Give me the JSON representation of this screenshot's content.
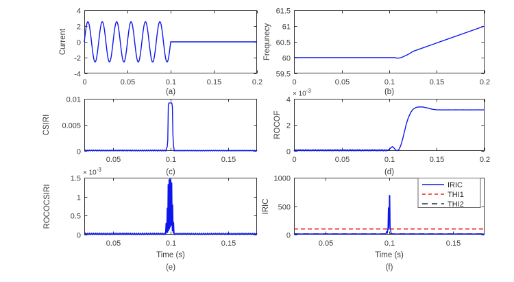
{
  "figure": {
    "background": "#ffffff",
    "axis_color": "#333333",
    "tick_label_color": "#3b3b3b",
    "series_blue": "#0d16ec",
    "threshold_red": "#ee2619",
    "threshold_black": "#2b2b2b"
  },
  "chart_data": [
    {
      "id": "a",
      "type": "line",
      "panel_label": "(a)",
      "ylabel": "Current",
      "xlabel": "",
      "xlim": [
        0,
        0.2
      ],
      "ylim": [
        -4,
        4
      ],
      "xticks": {
        "vals": [
          0,
          0.05,
          0.1,
          0.15,
          0.2
        ],
        "labels": [
          "0",
          "0.05",
          "0.1",
          "0.15",
          "0.2"
        ]
      },
      "yticks": {
        "vals": [
          -4,
          -2,
          0,
          2,
          4
        ],
        "labels": [
          "-4",
          "-2",
          "0",
          "2",
          "4"
        ]
      },
      "series": [
        {
          "name": "current",
          "color": "#0d16ec",
          "width": 1.4,
          "segments": [
            {
              "kind": "sine",
              "freq": 60,
              "amp": 2.55,
              "x0": 0,
              "x1": 0.1,
              "step": 0.0002
            },
            {
              "kind": "flat",
              "y": 0,
              "x0": 0.1,
              "x1": 0.2
            }
          ]
        }
      ]
    },
    {
      "id": "b",
      "type": "line",
      "panel_label": "(b)",
      "ylabel": "Frequnecy",
      "xlabel": "",
      "xlim": [
        0,
        0.2
      ],
      "ylim": [
        59.5,
        61.5
      ],
      "xticks": {
        "vals": [
          0,
          0.05,
          0.1,
          0.15,
          0.2
        ],
        "labels": [
          "0",
          "0.05",
          "0.1",
          "0.15",
          "0.2"
        ]
      },
      "yticks": {
        "vals": [
          59.5,
          60,
          60.5,
          61,
          61.5
        ],
        "labels": [
          "59.5",
          "60",
          "60.5",
          "61",
          "61.5"
        ]
      },
      "series": [
        {
          "name": "frequency",
          "color": "#0d16ec",
          "width": 1.4,
          "segments": [
            {
              "kind": "points",
              "pts": [
                [
                  0,
                  60
                ],
                [
                  0.105,
                  60
                ],
                [
                  0.109,
                  59.983
                ],
                [
                  0.112,
                  59.995
                ],
                [
                  0.116,
                  60.05
                ],
                [
                  0.12,
                  60.105
                ],
                [
                  0.125,
                  60.2
                ],
                [
                  0.2,
                  61.0
                ]
              ]
            }
          ]
        }
      ]
    },
    {
      "id": "c",
      "type": "line",
      "panel_label": "(c)",
      "ylabel": "CSIRI",
      "xlabel": "",
      "xlim": [
        0.025,
        0.175
      ],
      "ylim": [
        0,
        0.01
      ],
      "xticks": {
        "vals": [
          0.05,
          0.1,
          0.15
        ],
        "labels": [
          "0.05",
          "0.1",
          "0.15"
        ]
      },
      "yticks": {
        "vals": [
          0,
          0.005,
          0.01
        ],
        "labels": [
          "0",
          "0.005",
          "0.01"
        ]
      },
      "series": [
        {
          "name": "csiri",
          "color": "#0d16ec",
          "width": 1.4,
          "segments": [
            {
              "kind": "noisyflat",
              "y": 8e-05,
              "amp": 0.00012,
              "x0": 0.025,
              "x1": 0.096,
              "step": 0.0005
            },
            {
              "kind": "points",
              "pts": [
                [
                  0.096,
                  0.0002
                ],
                [
                  0.097,
                  0.0008
                ],
                [
                  0.0975,
                  0.002
                ],
                [
                  0.098,
                  0.0088
                ],
                [
                  0.0985,
                  0.0092
                ],
                [
                  0.101,
                  0.0092
                ],
                [
                  0.1015,
                  0.0085
                ],
                [
                  0.102,
                  0.003
                ],
                [
                  0.1025,
                  0.001
                ],
                [
                  0.103,
                  0.0003
                ]
              ]
            },
            {
              "kind": "noisyflat",
              "y": 6e-05,
              "amp": 8e-05,
              "x0": 0.103,
              "x1": 0.175,
              "step": 0.0005
            }
          ]
        }
      ]
    },
    {
      "id": "d",
      "type": "line",
      "panel_label": "(d)",
      "ylabel": "ROCOF",
      "xlabel": "",
      "y_multiplier": {
        "base": "× 10",
        "exp": "-3"
      },
      "xlim": [
        0,
        0.2
      ],
      "ylim": [
        0,
        0.004
      ],
      "xticks": {
        "vals": [
          0,
          0.05,
          0.1,
          0.15,
          0.2
        ],
        "labels": [
          "0",
          "0.05",
          "0.1",
          "0.15",
          "0.2"
        ]
      },
      "yticks": {
        "vals": [
          0,
          0.002,
          0.004
        ],
        "labels": [
          "0",
          "2",
          "4"
        ]
      },
      "series": [
        {
          "name": "rocof",
          "color": "#0d16ec",
          "width": 1.4,
          "segments": [
            {
              "kind": "noisyflat",
              "y": 5e-05,
              "amp": 5e-05,
              "x0": 0,
              "x1": 0.098,
              "step": 0.0005
            },
            {
              "kind": "points",
              "pts": [
                [
                  0.098,
                  6e-05
                ],
                [
                  0.1,
                  0.00012
                ],
                [
                  0.1025,
                  0.0003
                ],
                [
                  0.1035,
                  0.00033
                ],
                [
                  0.105,
                  0.00022
                ],
                [
                  0.107,
                  6e-05
                ],
                [
                  0.1085,
                  2e-05
                ],
                [
                  0.11,
                  0.0001
                ],
                [
                  0.112,
                  0.0004
                ],
                [
                  0.114,
                  0.0009
                ],
                [
                  0.116,
                  0.0015
                ],
                [
                  0.118,
                  0.0021
                ],
                [
                  0.12,
                  0.00255
                ],
                [
                  0.1225,
                  0.00295
                ],
                [
                  0.125,
                  0.0032
                ],
                [
                  0.128,
                  0.00333
                ],
                [
                  0.131,
                  0.00338
                ],
                [
                  0.135,
                  0.00337
                ],
                [
                  0.14,
                  0.0033
                ],
                [
                  0.145,
                  0.0032
                ],
                [
                  0.15,
                  0.00316
                ]
              ]
            },
            {
              "kind": "noisyflat",
              "y": 0.00315,
              "amp": 1e-05,
              "x0": 0.15,
              "x1": 0.2,
              "step": 0.001
            }
          ]
        }
      ]
    },
    {
      "id": "e",
      "type": "line",
      "panel_label": "(e)",
      "ylabel": "ROCOCSIRI",
      "xlabel": "Time (s)",
      "y_multiplier": {
        "base": "× 10",
        "exp": "-3"
      },
      "xlim": [
        0.025,
        0.175
      ],
      "ylim": [
        0,
        0.0015
      ],
      "xticks": {
        "vals": [
          0.05,
          0.1,
          0.15
        ],
        "labels": [
          "0.05",
          "0.1",
          "0.15"
        ]
      },
      "yticks": {
        "vals": [
          0,
          0.0005,
          0.001,
          0.0015
        ],
        "labels": [
          "0",
          "0.5",
          "1",
          "1.5"
        ]
      },
      "series": [
        {
          "name": "rococsiri",
          "color": "#0d16ec",
          "width": 1.4,
          "segments": [
            {
              "kind": "noisyflat",
              "y": 2e-05,
              "amp": 2.5e-05,
              "x0": 0.025,
              "x1": 0.0955,
              "step": 0.0005
            },
            {
              "kind": "points",
              "pts": [
                [
                  0.0955,
                  2e-05
                ],
                [
                  0.096,
                  0.0003
                ],
                [
                  0.0965,
                  4e-05
                ],
                [
                  0.097,
                  0.0007
                ],
                [
                  0.0974,
                  6e-05
                ],
                [
                  0.0978,
                  0.00132
                ],
                [
                  0.0982,
                  0.0001
                ],
                [
                  0.0986,
                  0.00145
                ],
                [
                  0.099,
                  0.00015
                ],
                [
                  0.0994,
                  0.00147
                ],
                [
                  0.0998,
                  0.0002
                ],
                [
                  0.1002,
                  0.00143
                ],
                [
                  0.1006,
                  0.00025
                ],
                [
                  0.101,
                  0.00136
                ],
                [
                  0.1014,
                  0.0001
                ],
                [
                  0.1018,
                  0.00078
                ],
                [
                  0.1022,
                  5e-05
                ],
                [
                  0.1026,
                  0.00032
                ],
                [
                  0.103,
                  2e-05
                ]
              ]
            },
            {
              "kind": "noisyflat",
              "y": 2e-05,
              "amp": 2e-05,
              "x0": 0.103,
              "x1": 0.175,
              "step": 0.0005
            }
          ]
        }
      ]
    },
    {
      "id": "f",
      "type": "line",
      "panel_label": "(f)",
      "ylabel": "IRIC",
      "xlabel": "Time (s)",
      "xlim": [
        0.025,
        0.175
      ],
      "ylim": [
        0,
        1000
      ],
      "xticks": {
        "vals": [
          0.05,
          0.1,
          0.15
        ],
        "labels": [
          "0.05",
          "0.1",
          "0.15"
        ]
      },
      "yticks": {
        "vals": [
          0,
          500,
          1000
        ],
        "labels": [
          "0",
          "500",
          "1000"
        ]
      },
      "series": [
        {
          "name": "THI2",
          "color": "#2b2b2b",
          "width": 1.5,
          "dash": "8,6",
          "segments": [
            {
              "kind": "flat",
              "y": 14,
              "x0": 0.025,
              "x1": 0.175
            }
          ]
        },
        {
          "name": "THI1",
          "color": "#ee2619",
          "width": 1.7,
          "dash": "6,4",
          "segments": [
            {
              "kind": "flat",
              "y": 100,
              "x0": 0.025,
              "x1": 0.175
            }
          ]
        },
        {
          "name": "IRIC",
          "color": "#0d16ec",
          "width": 1.4,
          "segments": [
            {
              "kind": "noisyflat",
              "y": 12,
              "amp": 4,
              "x0": 0.025,
              "x1": 0.096,
              "step": 0.0006
            },
            {
              "kind": "points",
              "pts": [
                [
                  0.096,
                  12
                ],
                [
                  0.0975,
                  20
                ],
                [
                  0.098,
                  60
                ],
                [
                  0.0985,
                  25
                ],
                [
                  0.099,
                  130
                ],
                [
                  0.0993,
                  470
                ],
                [
                  0.0996,
                  455
                ],
                [
                  0.0998,
                  90
                ],
                [
                  0.1001,
                  690
                ],
                [
                  0.1004,
                  685
                ],
                [
                  0.1007,
                  120
                ],
                [
                  0.101,
                  95
                ],
                [
                  0.1013,
                  40
                ],
                [
                  0.1018,
                  18
                ],
                [
                  0.103,
                  12
                ]
              ]
            },
            {
              "kind": "noisyflat",
              "y": 12,
              "amp": 3,
              "x0": 0.103,
              "x1": 0.175,
              "step": 0.0006
            }
          ]
        }
      ],
      "legend": {
        "position": "northeast",
        "entries": [
          {
            "label": "IRIC",
            "color": "#0d16ec",
            "dash": ""
          },
          {
            "label": "THI1",
            "color": "#ee2619",
            "dash": "5,4"
          },
          {
            "label": "THI2",
            "color": "#2b2b2b",
            "dash": "8,6"
          }
        ]
      }
    }
  ]
}
